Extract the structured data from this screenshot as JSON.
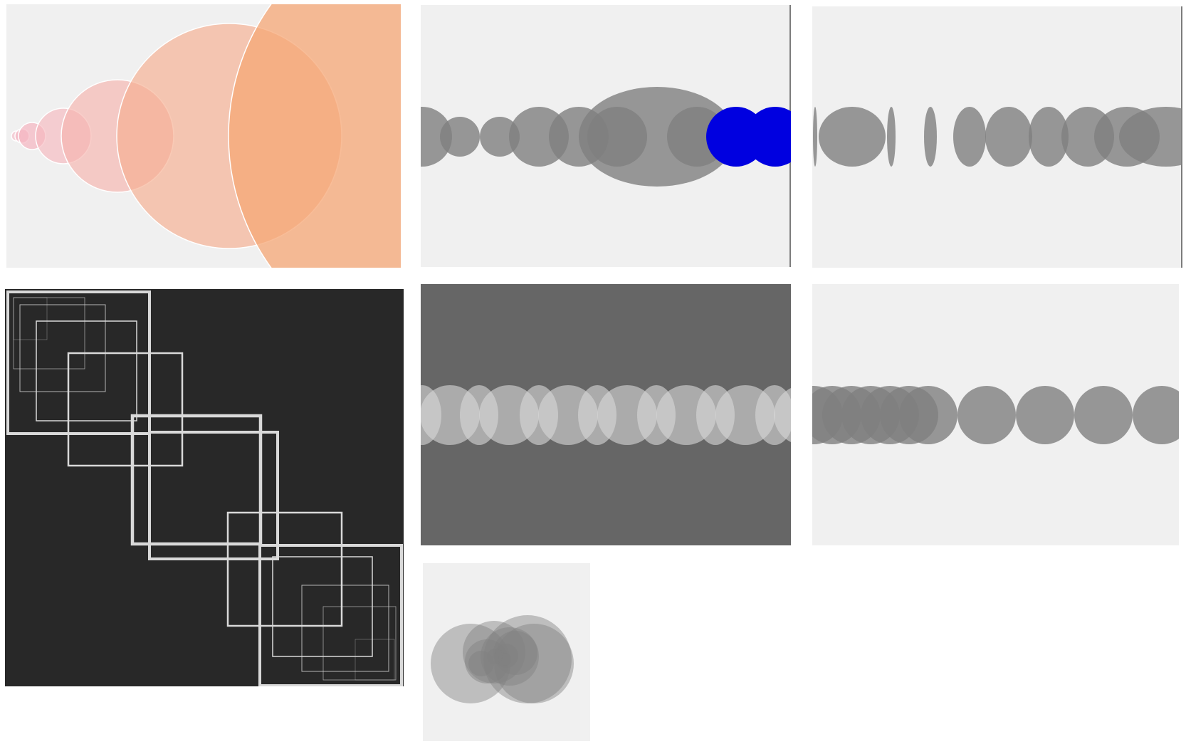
{
  "colors": {
    "light_panel_bg": "#f0f0f0",
    "dark_panel_bg": "#282828",
    "mid_panel_bg": "#666666",
    "orange_large": "#f6b085",
    "orange_deep": "#fb8f4f",
    "pink_light": "#f7c3c5",
    "gray_circle": "#808080",
    "blue_circle": "#0000e0",
    "light_gray_ellipse": "#d8d8d8",
    "white_outline": "#d9d9d9"
  }
}
